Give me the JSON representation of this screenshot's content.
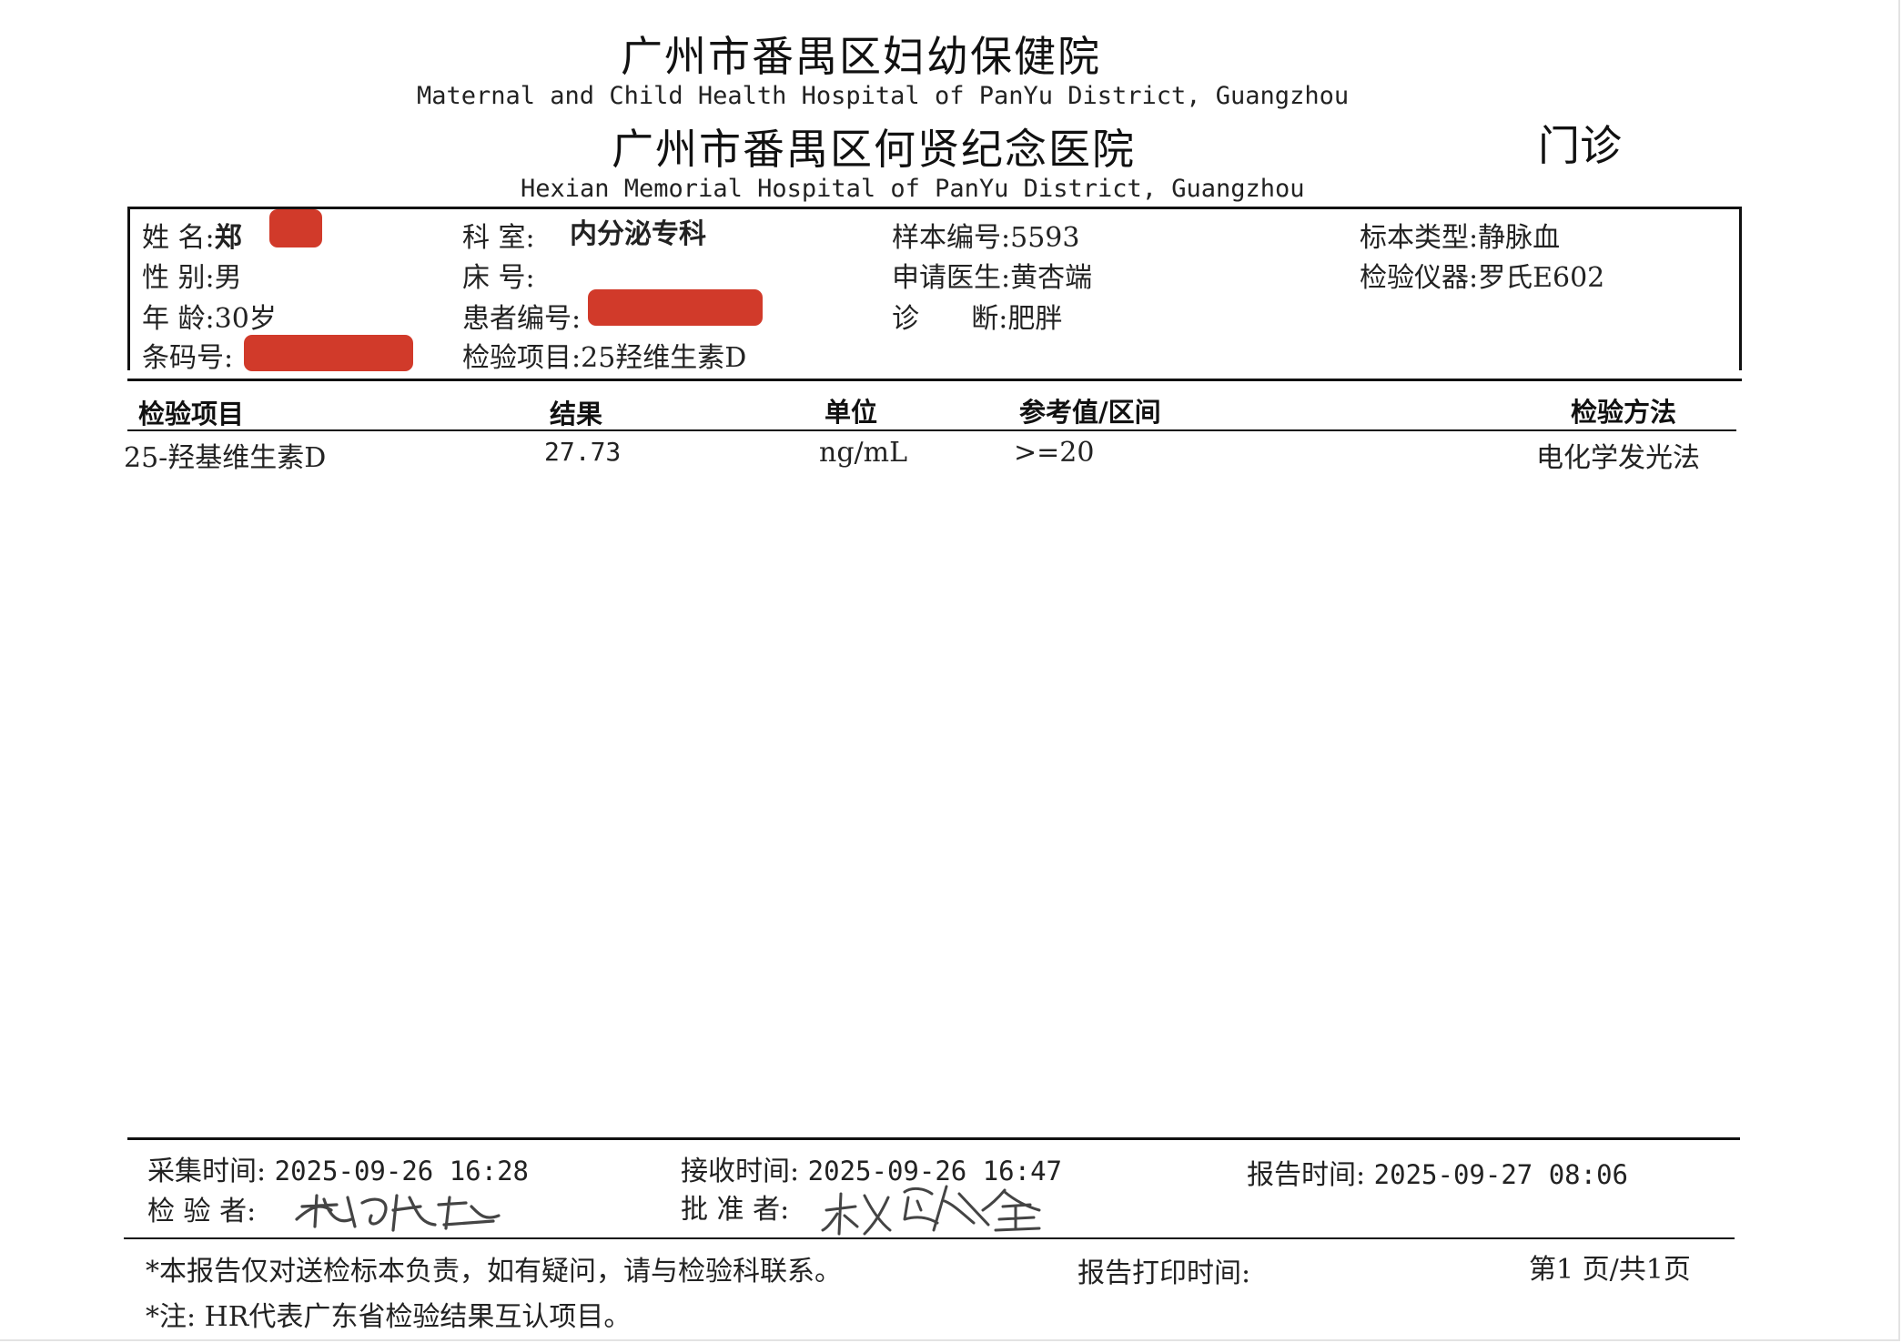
{
  "header": {
    "hospital_cn_1": "广州市番禺区妇幼保健院",
    "hospital_en_1": "Maternal and Child Health Hospital of PanYu District, Guangzhou",
    "hospital_cn_2": "广州市番禺区何贤纪念医院",
    "hospital_en_2": "Hexian Memorial Hospital of PanYu District, Guangzhou",
    "clinic_type": "门诊"
  },
  "patient": {
    "name_label": "姓 名:",
    "name_value": "郑",
    "gender_label": "性 别:",
    "gender_value": "男",
    "age_label": "年 龄:",
    "age_value": "30岁",
    "barcode_label": "条码号:",
    "department_label": "科 室:",
    "department_value": "内分泌专科",
    "bed_label": "床 号:",
    "patient_id_label": "患者编号:",
    "test_item_label": "检验项目:",
    "test_item_value": "25羟维生素D",
    "sample_no_label": "样本编号:",
    "sample_no_value": "5593",
    "doctor_label": "申请医生:",
    "doctor_value": "黄杏端",
    "diagnosis_label": "诊      断:",
    "diagnosis_value": "肥胖",
    "sample_type_label": "标本类型:",
    "sample_type_value": "静脉血",
    "instrument_label": "检验仪器:",
    "instrument_value": "罗氏E602"
  },
  "results": {
    "columns": [
      "检验项目",
      "结果",
      "单位",
      "参考值/区间",
      "检验方法"
    ],
    "rows": [
      {
        "item": "25-羟基维生素D",
        "result": "27.73",
        "unit": "ng/mL",
        "reference": ">=20",
        "method": "电化学发光法"
      }
    ]
  },
  "footer": {
    "collect_label": "采集时间:",
    "collect_time": "2025-09-26 16:28",
    "receive_label": "接收时间:",
    "receive_time": "2025-09-26 16:47",
    "report_label": "报告时间:",
    "report_time": "2025-09-27 08:06",
    "tester_label": "检 验 者:",
    "approver_label": "批 准 者:",
    "disclaimer": "*本报告仅对送检标本负责，如有疑问，请与检验科联系。",
    "print_time_label": "报告打印时间:",
    "page_info": "第1 页/共1页",
    "note": "*注: HR代表广东省检验结果互认项目。"
  },
  "colors": {
    "redaction": "#d13a2a",
    "rule": "#111111"
  }
}
